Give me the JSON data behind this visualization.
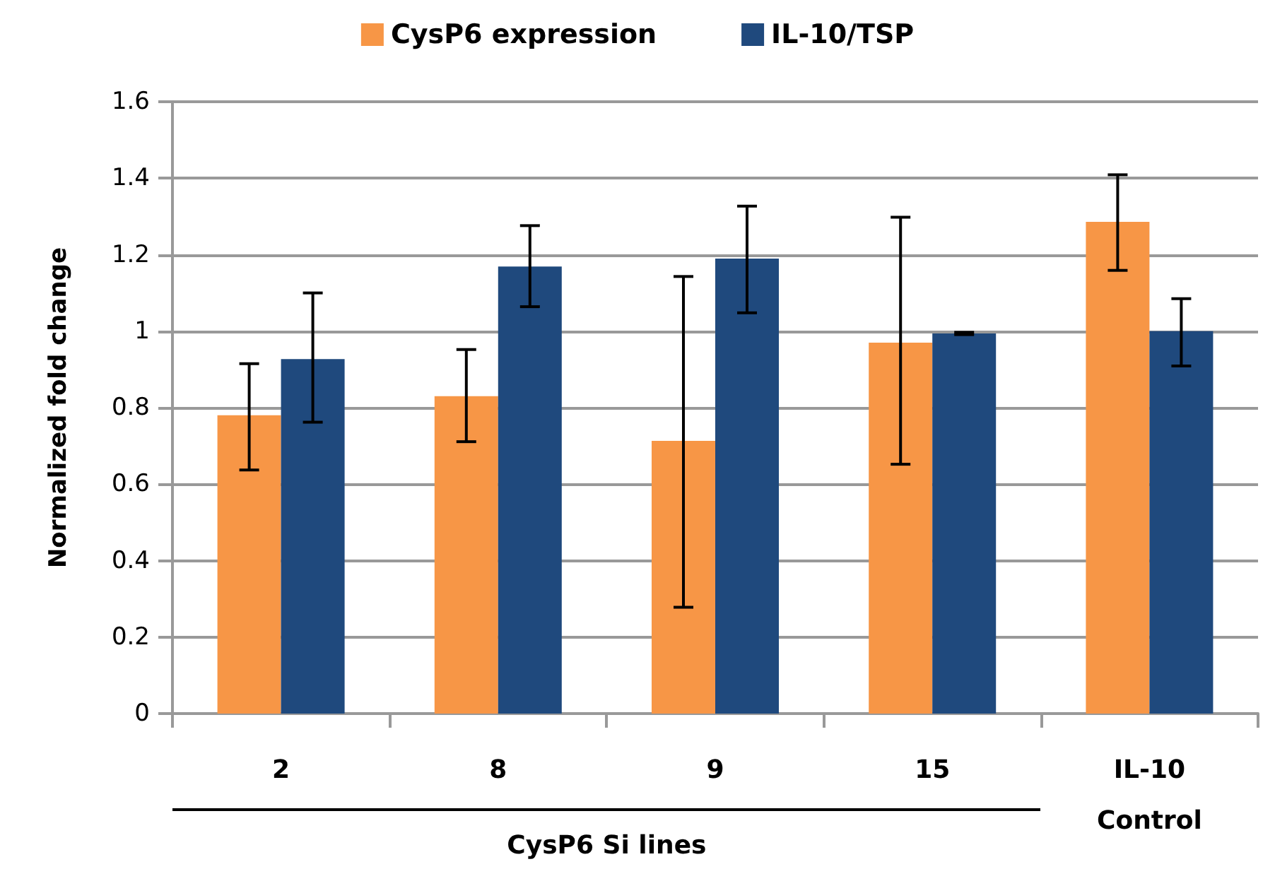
{
  "chart_data": {
    "type": "bar",
    "categories": [
      "2",
      "8",
      "9",
      "15",
      "IL-10\nControl"
    ],
    "series": [
      {
        "name": "CysP6 expression",
        "color": "#f79646",
        "values": [
          0.78,
          0.83,
          0.713,
          0.97,
          1.286
        ],
        "errors": [
          [
            0.637,
            0.915
          ],
          [
            0.711,
            0.952
          ],
          [
            0.278,
            1.143
          ],
          [
            0.652,
            1.298
          ],
          [
            1.159,
            1.409
          ]
        ]
      },
      {
        "name": "IL-10/TSP",
        "color": "#1f497d",
        "values": [
          0.927,
          1.169,
          1.19,
          0.994,
          1.0
        ],
        "errors": [
          [
            0.762,
            1.1
          ],
          [
            1.064,
            1.276
          ],
          [
            1.048,
            1.327
          ],
          [
            0.991,
            0.997
          ],
          [
            0.909,
            1.085
          ]
        ]
      }
    ],
    "ylabel": "Normalized fold change",
    "ylim": [
      0,
      1.6
    ],
    "yticks": [
      0,
      0.2,
      0.4,
      0.6,
      0.8,
      1,
      1.2,
      1.4,
      1.6
    ],
    "annotations": [
      "CysP6 Si lines"
    ],
    "grid": "y",
    "legend": "top"
  }
}
